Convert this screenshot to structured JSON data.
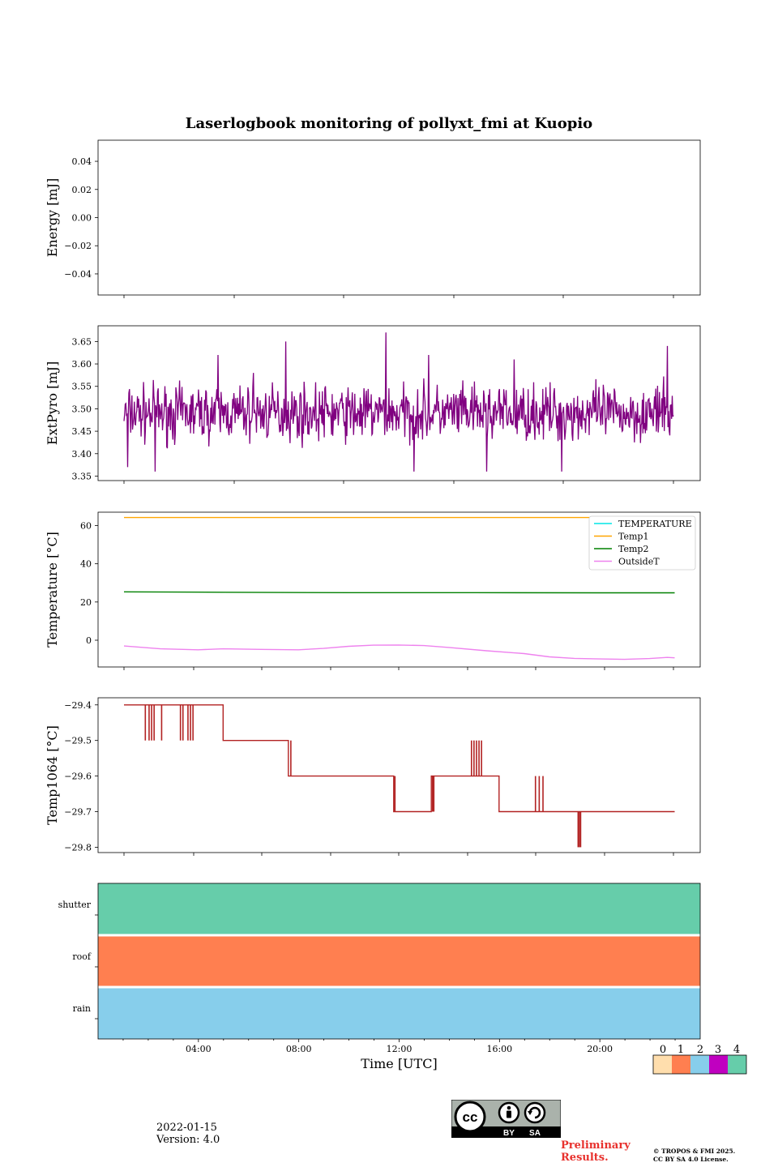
{
  "chart_data": [
    {
      "type": "line",
      "title": "Laserlogbook monitoring of pollyxt_fmi at Kuopio",
      "ylabel": "Energy [mJ]",
      "ylim": [
        -0.055,
        0.055
      ],
      "yticks": [
        0.04,
        0.02,
        0.0,
        -0.02,
        -0.04
      ],
      "ytick_labels": [
        "0.04",
        "0.02",
        "0.00",
        "−0.02",
        "−0.04"
      ],
      "series": []
    },
    {
      "type": "line",
      "ylabel": "ExtPyro [mJ]",
      "ylim": [
        3.34,
        3.685
      ],
      "yticks": [
        3.65,
        3.6,
        3.55,
        3.5,
        3.45,
        3.4,
        3.35
      ],
      "ytick_labels": [
        "3.65",
        "3.60",
        "3.55",
        "3.50",
        "3.45",
        "3.40",
        "3.35"
      ],
      "x_hours": [
        1.05,
        22.95
      ],
      "series": [
        {
          "name": "ExtPyro",
          "color": "#800080",
          "mean": 3.49,
          "spread": 0.05,
          "spikes": [
            [
              1.2,
              3.37
            ],
            [
              2.3,
              3.36
            ],
            [
              4.8,
              3.62
            ],
            [
              6.2,
              3.58
            ],
            [
              7.5,
              3.65
            ],
            [
              11.5,
              3.67
            ],
            [
              12.6,
              3.36
            ],
            [
              13.2,
              3.62
            ],
            [
              15.5,
              3.36
            ],
            [
              16.6,
              3.61
            ],
            [
              18.5,
              3.36
            ],
            [
              22.7,
              3.64
            ]
          ]
        }
      ]
    },
    {
      "type": "line",
      "ylabel": "Temperature [°C]",
      "ylim": [
        -14,
        67
      ],
      "yticks": [
        60,
        40,
        20,
        0
      ],
      "ytick_labels": [
        "60",
        "40",
        "20",
        "0"
      ],
      "legend": {
        "position": "top-right",
        "entries": [
          "TEMPERATURE",
          "Temp1",
          "Temp2",
          "OutsideT"
        ]
      },
      "series": [
        {
          "name": "TEMPERATURE",
          "color": "#00e5e5",
          "x": [],
          "y": []
        },
        {
          "name": "Temp1",
          "color": "#ffa500",
          "x": [
            1.05,
            23.0
          ],
          "y": [
            64.2,
            64.2
          ]
        },
        {
          "name": "Temp2",
          "color": "#008000",
          "x": [
            1.05,
            5,
            10,
            15,
            20,
            23.0
          ],
          "y": [
            25.3,
            25.1,
            24.9,
            24.9,
            24.8,
            24.8
          ]
        },
        {
          "name": "OutsideT",
          "color": "#ee82ee",
          "x": [
            1.05,
            2.5,
            4.0,
            5.0,
            6.5,
            8.0,
            9.0,
            10.0,
            11.0,
            12.0,
            13.0,
            14.0,
            15.5,
            17.0,
            18.0,
            19.0,
            20.0,
            21.0,
            22.0,
            22.7,
            23.0
          ],
          "y": [
            -3.0,
            -4.5,
            -5.0,
            -4.5,
            -4.8,
            -5.0,
            -4.3,
            -3.2,
            -2.6,
            -2.5,
            -2.8,
            -3.8,
            -5.5,
            -7.0,
            -8.7,
            -9.5,
            -9.8,
            -10.0,
            -9.6,
            -9.0,
            -9.2
          ]
        }
      ]
    },
    {
      "type": "line",
      "ylabel": "Temp1064 [°C]",
      "ylim": [
        -29.815,
        -29.38
      ],
      "yticks": [
        -29.4,
        -29.5,
        -29.6,
        -29.7,
        -29.8
      ],
      "ytick_labels": [
        "−29.4",
        "−29.5",
        "−29.6",
        "−29.7",
        "−29.8"
      ],
      "series": [
        {
          "name": "Temp1064",
          "color": "#b22222",
          "levels": [
            [
              1.05,
              5.0,
              -29.4
            ],
            [
              5.0,
              7.6,
              -29.5
            ],
            [
              7.6,
              11.8,
              -29.6
            ],
            [
              11.8,
              13.3,
              -29.7
            ],
            [
              13.3,
              16.0,
              -29.6
            ],
            [
              16.0,
              23.0,
              -29.7
            ]
          ],
          "glitches": [
            [
              1.9,
              -29.5
            ],
            [
              2.05,
              -29.5
            ],
            [
              2.15,
              -29.5
            ],
            [
              2.25,
              -29.5
            ],
            [
              2.55,
              -29.5
            ],
            [
              3.3,
              -29.5
            ],
            [
              3.4,
              -29.5
            ],
            [
              3.6,
              -29.5
            ],
            [
              3.7,
              -29.5
            ],
            [
              3.8,
              -29.5
            ],
            [
              7.7,
              -29.5
            ],
            [
              11.85,
              -29.6
            ],
            [
              13.35,
              -29.7
            ],
            [
              13.4,
              -29.7
            ],
            [
              14.9,
              -29.5
            ],
            [
              15.0,
              -29.5
            ],
            [
              15.1,
              -29.5
            ],
            [
              15.2,
              -29.5
            ],
            [
              15.3,
              -29.5
            ],
            [
              17.45,
              -29.6
            ],
            [
              17.6,
              -29.6
            ],
            [
              17.75,
              -29.6
            ],
            [
              19.15,
              -29.8
            ],
            [
              19.2,
              -29.8
            ],
            [
              19.25,
              -29.8
            ]
          ]
        }
      ]
    },
    {
      "type": "heatmap",
      "rows": [
        "shutter",
        "roof",
        "rain"
      ],
      "values": [
        4,
        1,
        2
      ],
      "xlabel": "Time [UTC]",
      "xlim_hours": [
        0,
        24
      ],
      "xticks_hours": [
        4,
        8,
        12,
        16,
        20
      ],
      "xtick_labels": [
        "04:00",
        "08:00",
        "12:00",
        "16:00",
        "20:00"
      ],
      "colorbar": {
        "labels": [
          "0",
          "1",
          "2",
          "3",
          "4"
        ],
        "colors": [
          "#ffdead",
          "#ff7f50",
          "#87ceeb",
          "#c000c0",
          "#66cdaa"
        ]
      }
    }
  ],
  "footer": {
    "date": "2022-01-15",
    "version": "Version: 4.0",
    "preliminary": "Preliminary Results.",
    "copyright_line1": "© TROPOS & FMI 2025.",
    "copyright_line2": "CC BY SA 4.0 License.",
    "license_by": "BY",
    "license_sa": "SA",
    "license_cc": "cc"
  }
}
